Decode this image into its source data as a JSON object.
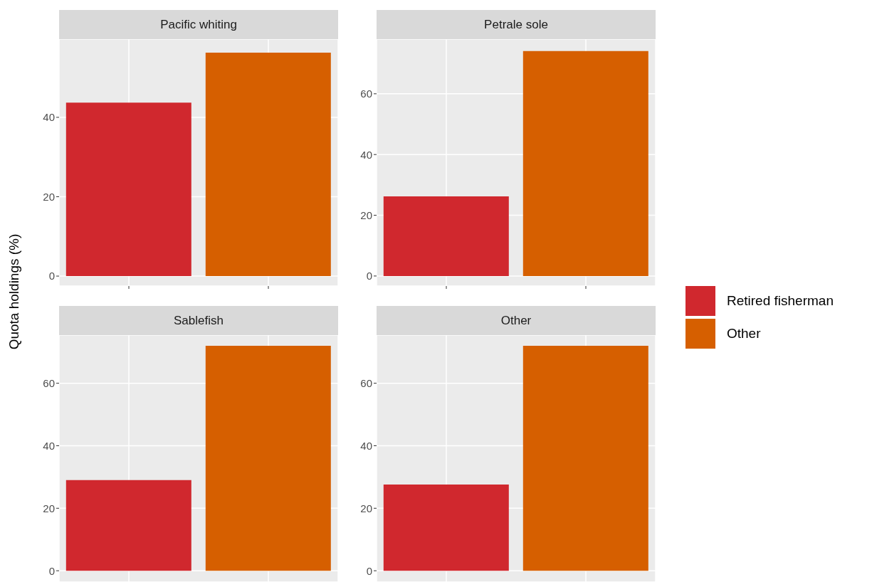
{
  "chart_data": [
    {
      "type": "bar",
      "title": "Pacific whiting",
      "ylabel": "Quota holdings (%)",
      "categories": [
        null,
        null
      ],
      "series": [
        {
          "name": "Retired fisherman",
          "color": "#d0282e",
          "values": [
            43.7,
            null
          ]
        },
        {
          "name": "Other",
          "color": "#d65f00",
          "values": [
            null,
            56.3
          ]
        }
      ],
      "ylim": [
        -2.5,
        59.7
      ],
      "yticks": [
        0,
        20,
        40
      ],
      "grid": true,
      "legend": "right",
      "tick_labels": "y"
    },
    {
      "type": "bar",
      "title": "Petrale sole",
      "categories": [
        null,
        null
      ],
      "series": [
        {
          "color": "#d0282e",
          "values": [
            26.2,
            null
          ]
        },
        {
          "color": "#d65f00",
          "values": [
            null,
            74.1
          ]
        }
      ],
      "ylim": [
        -3.3,
        78
      ],
      "yticks": [
        0,
        20,
        40,
        60
      ],
      "grid": true,
      "tick_labels": "y"
    },
    {
      "type": "bar",
      "title": "Sablefish",
      "categories": [
        null,
        null
      ],
      "series": [
        {
          "color": "#d0282e",
          "values": [
            29,
            null
          ]
        },
        {
          "color": "#d65f00",
          "values": [
            null,
            72
          ]
        }
      ],
      "ylim": [
        -3.6,
        75.4
      ],
      "yticks": [
        0,
        20,
        40,
        60
      ],
      "grid": true,
      "tick_labels": "y"
    },
    {
      "type": "bar",
      "title": "Other",
      "categories": [
        null,
        null
      ],
      "series": [
        {
          "color": "#d0282e",
          "values": [
            27.6,
            null
          ]
        },
        {
          "color": "#d65f00",
          "values": [
            null,
            72
          ]
        }
      ],
      "ylim": [
        -3.6,
        75.4
      ],
      "yticks": [
        0,
        20,
        40,
        60
      ],
      "grid": true,
      "tick_labels": "y"
    }
  ]
}
